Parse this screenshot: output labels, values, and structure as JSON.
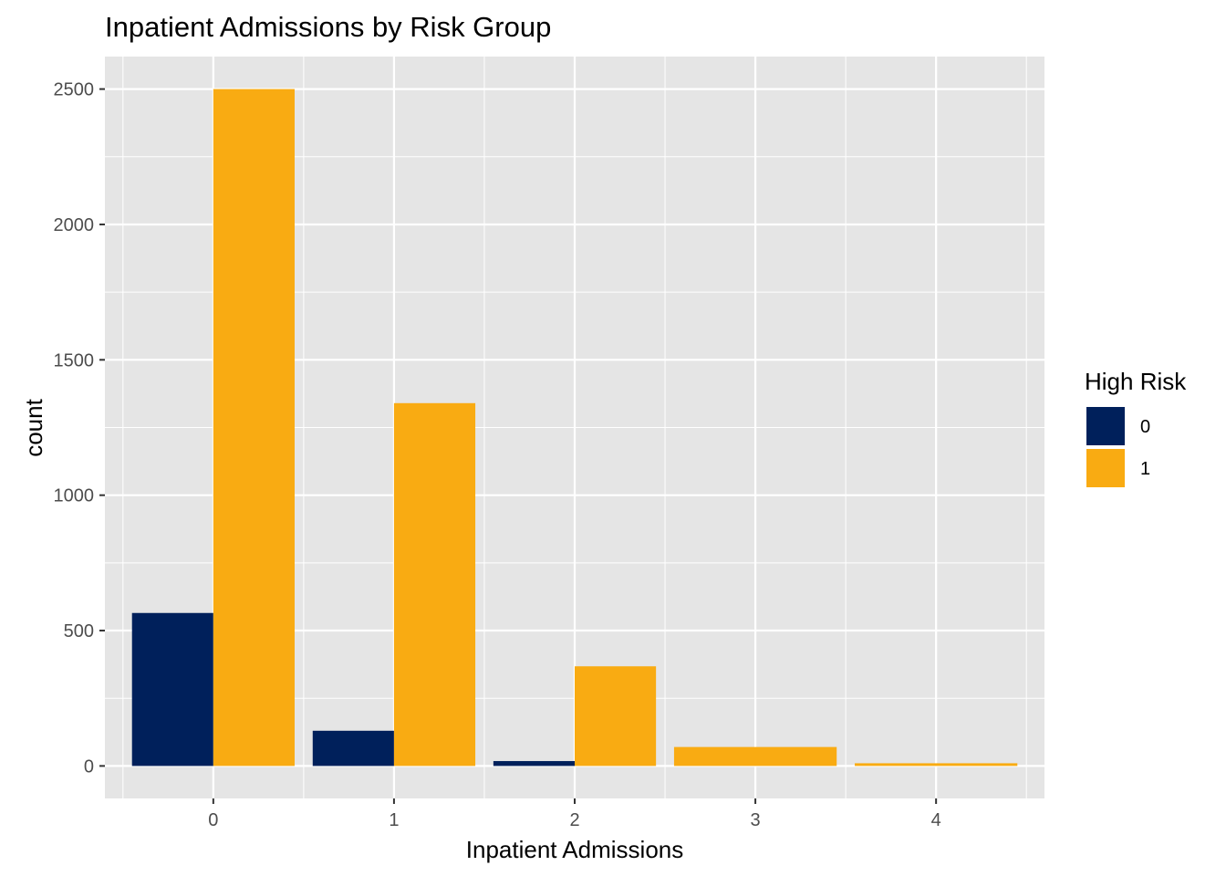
{
  "chart_data": {
    "type": "bar",
    "title": "Inpatient Admissions by Risk Group",
    "xlabel": "Inpatient Admissions",
    "ylabel": "count",
    "categories": [
      "0",
      "1",
      "2",
      "3",
      "4"
    ],
    "series": [
      {
        "name": "0",
        "values": [
          565,
          130,
          18,
          0,
          0
        ]
      },
      {
        "name": "1",
        "values": [
          2500,
          1340,
          368,
          70,
          10
        ]
      }
    ],
    "ylim": [
      -120,
      2620
    ],
    "yticks": [
      0,
      500,
      1000,
      1500,
      2000,
      2500
    ],
    "grid": true,
    "legend": {
      "title": "High Risk",
      "placement": "right",
      "entries": [
        "0",
        "1"
      ]
    },
    "colors": {
      "0": "#00205B",
      "1": "#F9AB12",
      "panel": "#E5E5E5",
      "grid": "#FFFFFF"
    }
  }
}
